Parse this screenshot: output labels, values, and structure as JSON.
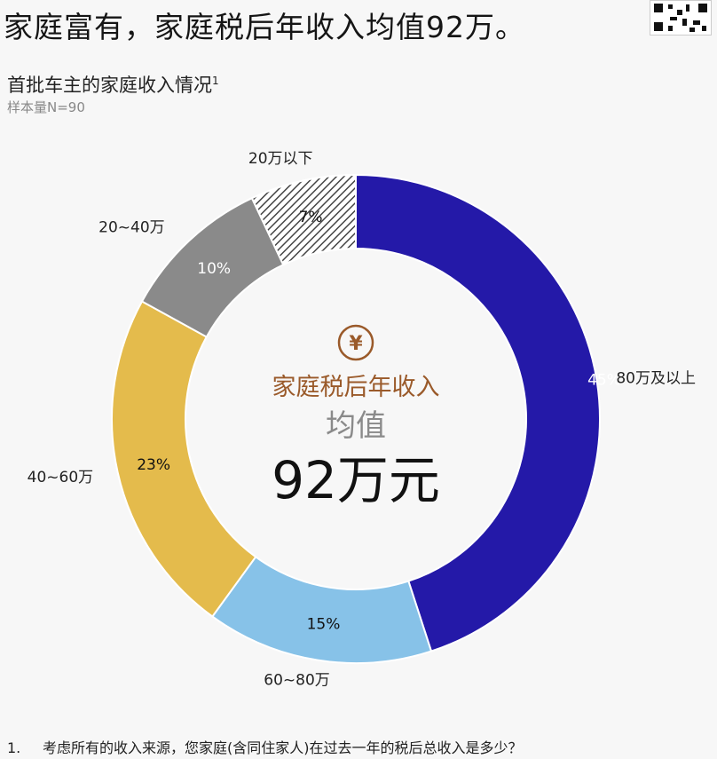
{
  "header": {
    "headline": "家庭富有，家庭税后年收入均值92万。",
    "subtitle": "首批车主的家庭收入情况",
    "subtitle_sup": "1",
    "sample": "样本量N=90"
  },
  "center": {
    "icon": "yen-icon",
    "label": "家庭税后年收入",
    "sub": "均值",
    "value": "92万元"
  },
  "colors": {
    "accent": "#9a5a2a",
    "muted": "#999999"
  },
  "chart_data": {
    "type": "pie",
    "donut": true,
    "start": "top, clockwise",
    "slices": [
      {
        "label": "80万及以上",
        "value": 45,
        "display": "45%",
        "color": "#2419a8",
        "pattern": "solid"
      },
      {
        "label": "60~80万",
        "value": 15,
        "display": "15%",
        "color": "#87c2e8",
        "pattern": "solid"
      },
      {
        "label": "40~60万",
        "value": 23,
        "display": "23%",
        "color": "#e4bb4c",
        "pattern": "solid"
      },
      {
        "label": "20~40万",
        "value": 10,
        "display": "10%",
        "color": "#8a8a8a",
        "pattern": "solid"
      },
      {
        "label": "20万以下",
        "value": 7,
        "display": "7%",
        "color": "#555555",
        "pattern": "hatched"
      }
    ]
  },
  "footnote": {
    "num": "1.",
    "text": "考虑所有的收入来源，您家庭(含同住家人)在过去一年的税后总收入是多少？"
  }
}
